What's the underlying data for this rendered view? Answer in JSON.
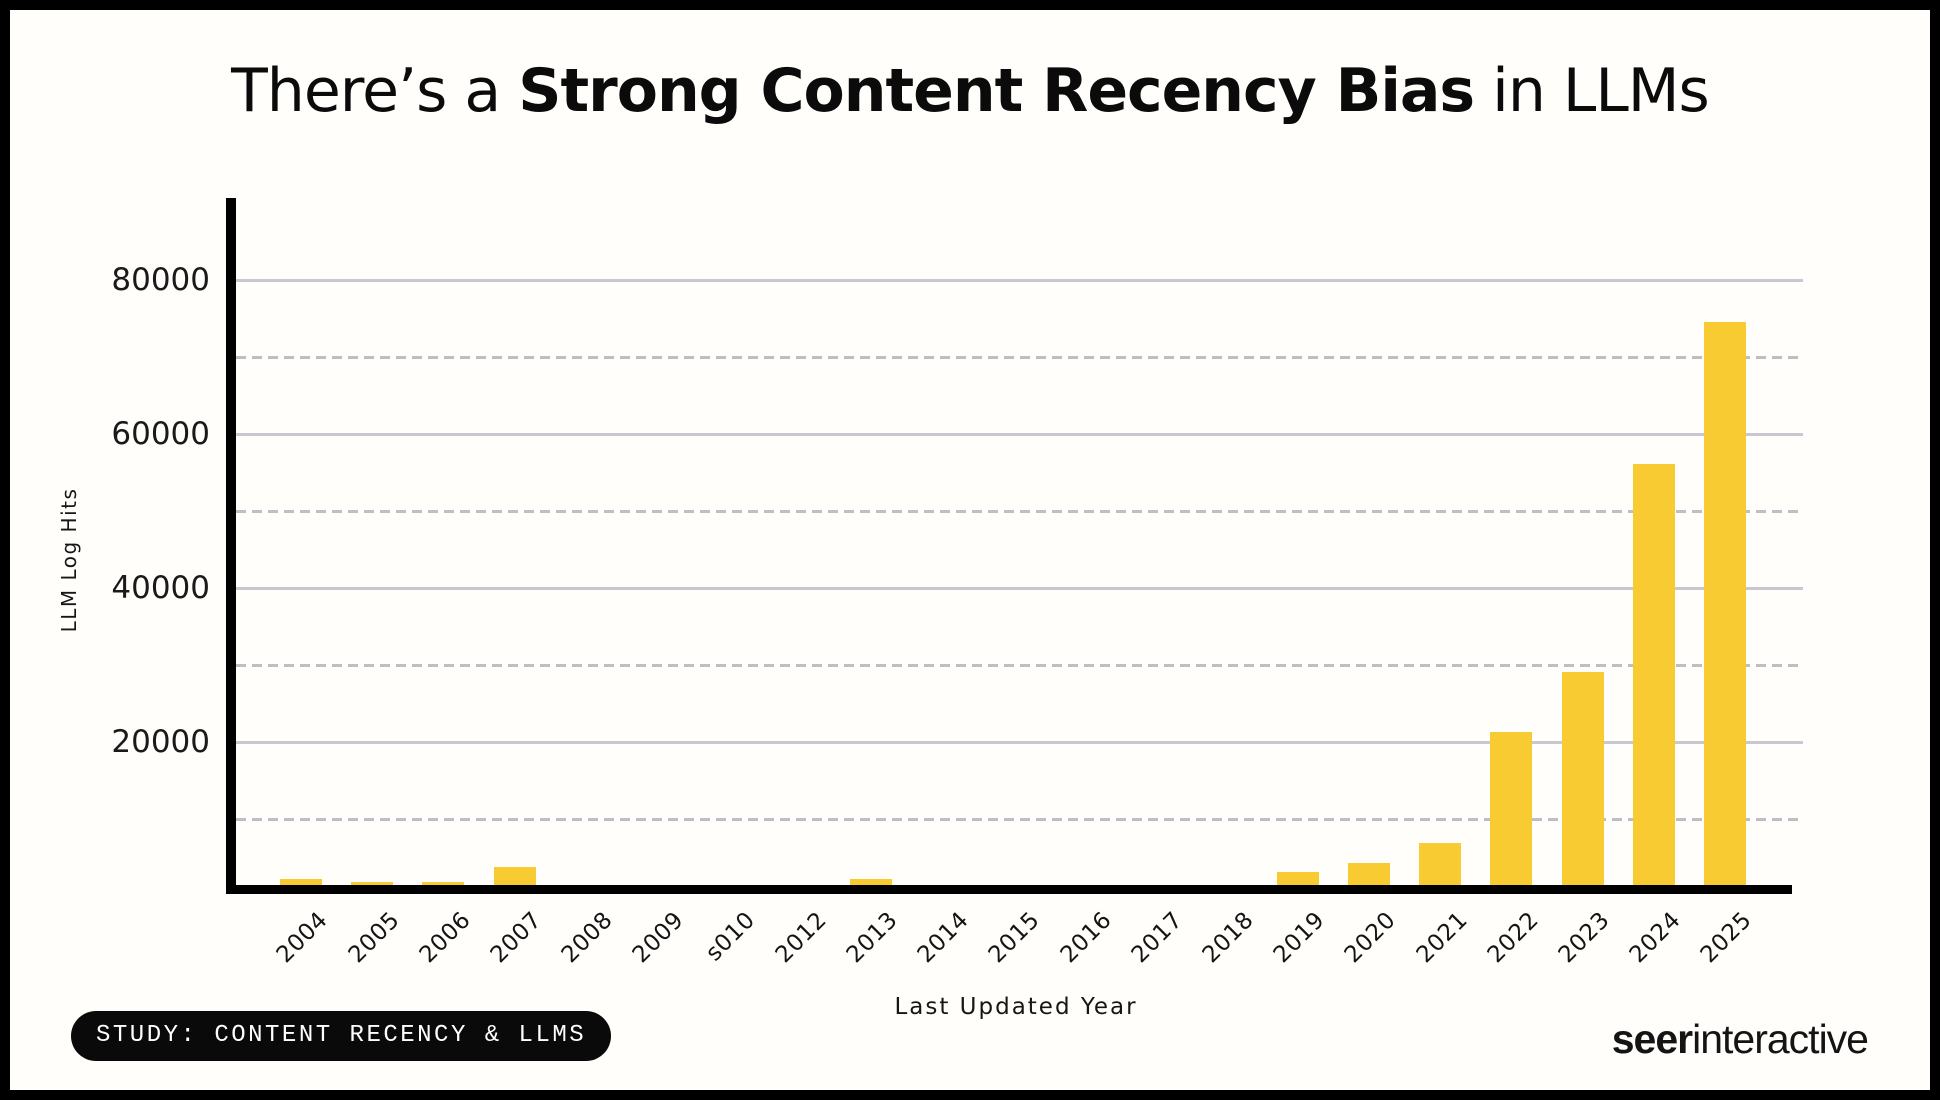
{
  "title": {
    "prefix": "There’s a ",
    "highlight": "Strong Content Recency Bias",
    "suffix": " in LLMs"
  },
  "chart_data": {
    "type": "bar",
    "title": "There’s a Strong Content Recency Bias in LLMs",
    "xlabel": "Last Updated Year",
    "ylabel": "LLM Log Hits",
    "categories": [
      "2004",
      "2005",
      "2006",
      "2007",
      "2008",
      "2009",
      "s010",
      "2012",
      "2013",
      "2014",
      "2015",
      "2016",
      "2017",
      "2018",
      "2019",
      "2020",
      "2021",
      "2022",
      "2023",
      "2024",
      "2025"
    ],
    "values": [
      2000,
      1500,
      1500,
      3500,
      0,
      0,
      0,
      0,
      2000,
      0,
      0,
      0,
      0,
      0,
      2900,
      4000,
      6600,
      21000,
      28800,
      55800,
      74300
    ],
    "ylim": [
      0,
      90000
    ],
    "yticks": [
      20000,
      40000,
      60000,
      80000
    ],
    "gridlines_solid": [
      20000,
      40000,
      60000,
      80000
    ],
    "gridlines_dashed": [
      10000,
      30000,
      50000,
      70000
    ],
    "grid": "on",
    "legend": "none",
    "bar_color": "#F8CB33"
  },
  "colors": {
    "bar": "#F8CB33",
    "background": "#FFFEFB",
    "frame": "#000000",
    "grid_solid": "#C7C8D0",
    "grid_dashed": "#BDBEC6",
    "text": "#111111",
    "badge_bg": "#0A0A0A",
    "badge_text": "#FFFFFF"
  },
  "footer": {
    "badge_label": "STUDY: CONTENT RECENCY & LLMS",
    "logo": {
      "bold": "seer",
      "regular": "interactive"
    }
  }
}
